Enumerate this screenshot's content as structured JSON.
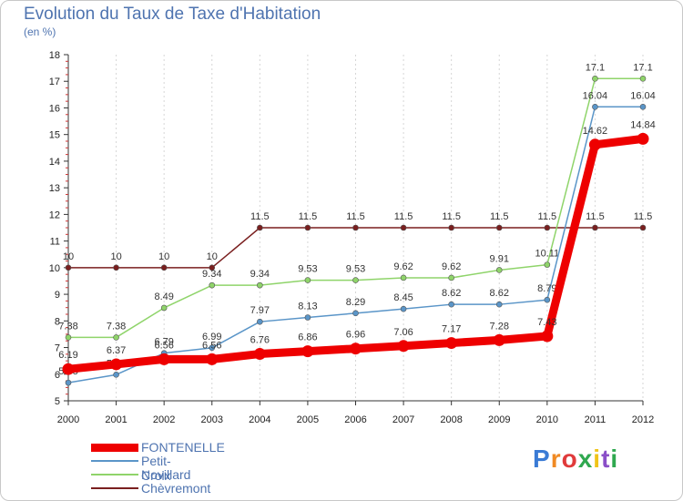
{
  "header": {
    "title": "Evolution du Taux de Taxe d'Habitation",
    "subtitle": "(en %)"
  },
  "brand": {
    "text": "Proxiti",
    "colors": [
      "#3a7bd5",
      "#f08a24",
      "#e03b3b",
      "#2fa84f",
      "#f0c419",
      "#8a4fc8",
      "#2fa84f"
    ]
  },
  "chart_data": {
    "type": "line",
    "title": "Evolution du Taux de Taxe d'Habitation",
    "subtitle": "(en %)",
    "xlabel": "",
    "ylabel": "",
    "x": [
      "2000",
      "2001",
      "2002",
      "2003",
      "2004",
      "2005",
      "2006",
      "2007",
      "2008",
      "2009",
      "2010",
      "2011",
      "2012"
    ],
    "ylim": [
      5,
      18
    ],
    "yticks": [
      5,
      6,
      7,
      8,
      9,
      10,
      11,
      12,
      13,
      14,
      15,
      16,
      17,
      18
    ],
    "grid": {
      "vertical": true,
      "horizontal": false
    },
    "legend_position": "bottom-left",
    "series": [
      {
        "name": "Chèvremont",
        "color": "#7a1f1f",
        "values": [
          10,
          10,
          10,
          10,
          11.5,
          11.5,
          11.5,
          11.5,
          11.5,
          11.5,
          11.5,
          11.5,
          11.5
        ],
        "labels": [
          "10",
          "10",
          "10",
          "10",
          "11.5",
          "11.5",
          "11.5",
          "11.5",
          "11.5",
          "11.5",
          "11.5",
          "11.5",
          "11.5"
        ]
      },
      {
        "name": "Novillard",
        "color": "#8fd46a",
        "values": [
          7.38,
          7.38,
          8.49,
          9.34,
          9.34,
          9.53,
          9.53,
          9.62,
          9.62,
          9.91,
          10.11,
          17.1,
          17.1
        ],
        "labels": [
          "7.38",
          "7.38",
          "8.49",
          "9.34",
          "9.34",
          "9.53",
          "9.53",
          "9.62",
          "9.62",
          "9.91",
          "10.11",
          "17.1",
          "17.1"
        ]
      },
      {
        "name": "Petit-Croix",
        "color": "#5a95c8",
        "values": [
          5.68,
          5.98,
          6.79,
          6.99,
          7.97,
          8.13,
          8.29,
          8.45,
          8.62,
          8.62,
          8.79,
          16.04,
          16.04
        ],
        "labels": [
          "5.68",
          "5.98",
          "6.79",
          "6.99",
          "7.97",
          "8.13",
          "8.29",
          "8.45",
          "8.62",
          "8.62",
          "8.79",
          "16.04",
          "16.04"
        ]
      },
      {
        "name": "FONTENELLE",
        "color": "#ee0000",
        "values": [
          6.19,
          6.37,
          6.56,
          6.56,
          6.76,
          6.86,
          6.96,
          7.06,
          7.17,
          7.28,
          7.43,
          14.62,
          14.84
        ],
        "labels": [
          "6.19",
          "6.37",
          "6.56",
          "6.56",
          "6.76",
          "6.86",
          "6.96",
          "7.06",
          "7.17",
          "7.28",
          "7.43",
          "14.62",
          "14.84"
        ]
      }
    ]
  },
  "legend": [
    {
      "name": "FONTENELLE",
      "color": "#ee0000",
      "thickness": 9,
      "text_color": "#4f74b0"
    },
    {
      "name": "Petit-Croix",
      "color": "#5a95c8",
      "thickness": 2,
      "text_color": "#4f74b0"
    },
    {
      "name": "Novillard",
      "color": "#8fd46a",
      "thickness": 2,
      "text_color": "#4f74b0"
    },
    {
      "name": "Chèvremont",
      "color": "#7a1f1f",
      "thickness": 2,
      "text_color": "#4f74b0"
    }
  ]
}
